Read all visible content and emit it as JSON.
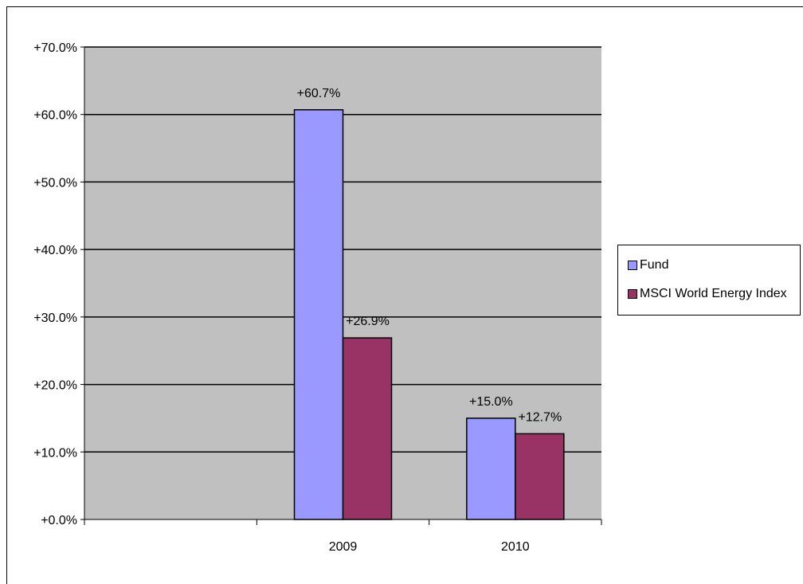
{
  "chart_data": {
    "type": "bar",
    "categories": [
      "",
      "2009",
      "2010"
    ],
    "series": [
      {
        "name": "Fund",
        "color": "#9999ff",
        "values": [
          null,
          60.7,
          15.0
        ],
        "labels": [
          "",
          "+60.7%",
          "+15.0%"
        ]
      },
      {
        "name": "MSCI World Energy Index",
        "color": "#993366",
        "values": [
          null,
          26.9,
          12.7
        ],
        "labels": [
          "",
          "+26.9%",
          "+12.7%"
        ]
      }
    ],
    "ylim": [
      0,
      70
    ],
    "yticks": [
      0,
      10,
      20,
      30,
      40,
      50,
      60,
      70
    ],
    "ytick_labels": [
      "+0.0%",
      "+10.0%",
      "+20.0%",
      "+30.0%",
      "+40.0%",
      "+50.0%",
      "+60.0%",
      "+70.0%"
    ],
    "grid": true,
    "plot_background": "#c0c0c0",
    "legend_position": "right"
  }
}
